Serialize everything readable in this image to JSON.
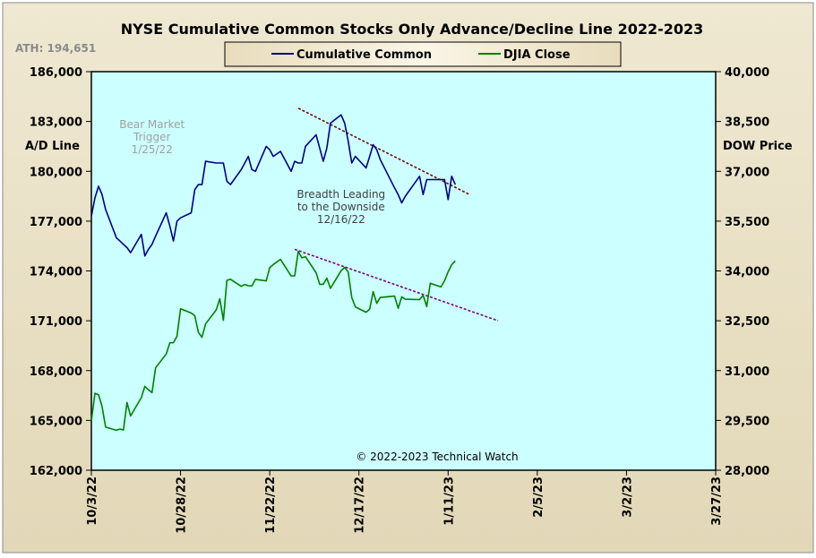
{
  "chart_data": {
    "type": "line",
    "title": "NYSE Cumulative Common Stocks Only Advance/Decline Line 2022-2023",
    "ath_label": "ATH: 194,651",
    "ylabel_left": "A/D Line",
    "ylabel_right": "DOW Price",
    "copyright": "© 2022-2023 Technical Watch",
    "grid": false,
    "legend_position": "top-center",
    "background_color": "#ccffff",
    "frame_color": "#e8e0c4",
    "x_domain": [
      "2022-10-03",
      "2023-03-27"
    ],
    "x_ticks": [
      {
        "date": "2022-10-03",
        "label": "10/3/22"
      },
      {
        "date": "2022-10-28",
        "label": "10/28/22"
      },
      {
        "date": "2022-11-22",
        "label": "11/22/22"
      },
      {
        "date": "2022-12-17",
        "label": "12/17/22"
      },
      {
        "date": "2023-01-11",
        "label": "1/11/23"
      },
      {
        "date": "2023-02-05",
        "label": "2/5/23"
      },
      {
        "date": "2023-03-02",
        "label": "3/2/23"
      },
      {
        "date": "2023-03-27",
        "label": "3/27/23"
      }
    ],
    "y_left": {
      "range": [
        162000,
        186000
      ],
      "ticks": [
        162000,
        165000,
        168000,
        171000,
        174000,
        177000,
        180000,
        183000,
        186000
      ],
      "tick_labels": [
        "162,000",
        "165,000",
        "168,000",
        "171,000",
        "174,000",
        "177,000",
        "180,000",
        "183,000",
        "186,000"
      ]
    },
    "y_right": {
      "range": [
        28000,
        40000
      ],
      "ticks": [
        28000,
        29500,
        31000,
        32500,
        34000,
        35500,
        37000,
        38500,
        40000
      ],
      "tick_labels": [
        "28,000",
        "29,500",
        "31,000",
        "32,500",
        "34,000",
        "35,500",
        "37,000",
        "38,500",
        "40,000"
      ]
    },
    "series": [
      {
        "name": "Cumulative Common",
        "color": "#000080",
        "axis": "left",
        "points": [
          [
            "2022-10-03",
            177300
          ],
          [
            "2022-10-04",
            178400
          ],
          [
            "2022-10-05",
            179100
          ],
          [
            "2022-10-06",
            178600
          ],
          [
            "2022-10-07",
            177700
          ],
          [
            "2022-10-10",
            176000
          ],
          [
            "2022-10-11",
            175800
          ],
          [
            "2022-10-12",
            175600
          ],
          [
            "2022-10-13",
            175400
          ],
          [
            "2022-10-14",
            175100
          ],
          [
            "2022-10-17",
            176200
          ],
          [
            "2022-10-18",
            174900
          ],
          [
            "2022-10-19",
            175300
          ],
          [
            "2022-10-20",
            175600
          ],
          [
            "2022-10-21",
            176100
          ],
          [
            "2022-10-24",
            177500
          ],
          [
            "2022-10-25",
            176700
          ],
          [
            "2022-10-26",
            175800
          ],
          [
            "2022-10-27",
            177000
          ],
          [
            "2022-10-28",
            177200
          ],
          [
            "2022-10-31",
            177500
          ],
          [
            "2022-11-01",
            178900
          ],
          [
            "2022-11-02",
            179200
          ],
          [
            "2022-11-03",
            179200
          ],
          [
            "2022-11-04",
            180600
          ],
          [
            "2022-11-07",
            180500
          ],
          [
            "2022-11-08",
            180500
          ],
          [
            "2022-11-09",
            180500
          ],
          [
            "2022-11-10",
            179400
          ],
          [
            "2022-11-11",
            179200
          ],
          [
            "2022-11-14",
            180100
          ],
          [
            "2022-11-15",
            180500
          ],
          [
            "2022-11-16",
            180900
          ],
          [
            "2022-11-17",
            180100
          ],
          [
            "2022-11-18",
            180000
          ],
          [
            "2022-11-21",
            181500
          ],
          [
            "2022-11-22",
            181300
          ],
          [
            "2022-11-23",
            180900
          ],
          [
            "2022-11-25",
            181200
          ],
          [
            "2022-11-28",
            180000
          ],
          [
            "2022-11-29",
            180600
          ],
          [
            "2022-11-30",
            180500
          ],
          [
            "2022-12-01",
            180500
          ],
          [
            "2022-12-02",
            181500
          ],
          [
            "2022-12-05",
            182200
          ],
          [
            "2022-12-06",
            181400
          ],
          [
            "2022-12-07",
            180600
          ],
          [
            "2022-12-08",
            181400
          ],
          [
            "2022-12-09",
            182900
          ],
          [
            "2022-12-12",
            183400
          ],
          [
            "2022-12-13",
            182900
          ],
          [
            "2022-12-14",
            181800
          ],
          [
            "2022-12-15",
            180500
          ],
          [
            "2022-12-16",
            180900
          ],
          [
            "2022-12-19",
            180200
          ],
          [
            "2022-12-20",
            180900
          ],
          [
            "2022-12-21",
            181600
          ],
          [
            "2022-12-22",
            181300
          ],
          [
            "2022-12-23",
            180700
          ],
          [
            "2022-12-27",
            179000
          ],
          [
            "2022-12-28",
            178600
          ],
          [
            "2022-12-29",
            178100
          ],
          [
            "2022-12-30",
            178500
          ],
          [
            "2023-01-03",
            179700
          ],
          [
            "2023-01-04",
            178600
          ],
          [
            "2023-01-05",
            179500
          ],
          [
            "2023-01-06",
            179500
          ],
          [
            "2023-01-09",
            179500
          ],
          [
            "2023-01-10",
            179500
          ],
          [
            "2023-01-11",
            178300
          ],
          [
            "2023-01-12",
            179700
          ],
          [
            "2023-01-13",
            179200
          ]
        ]
      },
      {
        "name": "DJIA Close",
        "color": "#008000",
        "axis": "right",
        "points": [
          [
            "2022-10-03",
            29490
          ],
          [
            "2022-10-04",
            30316
          ],
          [
            "2022-10-05",
            30273
          ],
          [
            "2022-10-06",
            29927
          ],
          [
            "2022-10-07",
            29297
          ],
          [
            "2022-10-10",
            29203
          ],
          [
            "2022-10-11",
            29240
          ],
          [
            "2022-10-12",
            29210
          ],
          [
            "2022-10-13",
            30039
          ],
          [
            "2022-10-14",
            29635
          ],
          [
            "2022-10-17",
            30186
          ],
          [
            "2022-10-18",
            30524
          ],
          [
            "2022-10-19",
            30424
          ],
          [
            "2022-10-20",
            30334
          ],
          [
            "2022-10-21",
            31083
          ],
          [
            "2022-10-24",
            31500
          ],
          [
            "2022-10-25",
            31837
          ],
          [
            "2022-10-26",
            31840
          ],
          [
            "2022-10-27",
            32034
          ],
          [
            "2022-10-28",
            32862
          ],
          [
            "2022-10-31",
            32733
          ],
          [
            "2022-11-01",
            32653
          ],
          [
            "2022-11-02",
            32148
          ],
          [
            "2022-11-03",
            32001
          ],
          [
            "2022-11-04",
            32403
          ],
          [
            "2022-11-07",
            32827
          ],
          [
            "2022-11-08",
            33161
          ],
          [
            "2022-11-09",
            32514
          ],
          [
            "2022-11-10",
            33716
          ],
          [
            "2022-11-11",
            33748
          ],
          [
            "2022-11-14",
            33537
          ],
          [
            "2022-11-15",
            33593
          ],
          [
            "2022-11-16",
            33554
          ],
          [
            "2022-11-17",
            33546
          ],
          [
            "2022-11-18",
            33746
          ],
          [
            "2022-11-21",
            33700
          ],
          [
            "2022-11-22",
            34098
          ],
          [
            "2022-11-23",
            34194
          ],
          [
            "2022-11-25",
            34347
          ],
          [
            "2022-11-28",
            33850
          ],
          [
            "2022-11-29",
            33853
          ],
          [
            "2022-11-30",
            34590
          ],
          [
            "2022-12-01",
            34395
          ],
          [
            "2022-12-02",
            34430
          ],
          [
            "2022-12-05",
            33947
          ],
          [
            "2022-12-06",
            33597
          ],
          [
            "2022-12-07",
            33598
          ],
          [
            "2022-12-08",
            33781
          ],
          [
            "2022-12-09",
            33476
          ],
          [
            "2022-12-12",
            34005
          ],
          [
            "2022-12-13",
            34108
          ],
          [
            "2022-12-14",
            33966
          ],
          [
            "2022-12-15",
            33203
          ],
          [
            "2022-12-16",
            32920
          ],
          [
            "2022-12-19",
            32757
          ],
          [
            "2022-12-20",
            32850
          ],
          [
            "2022-12-21",
            33376
          ],
          [
            "2022-12-22",
            33027
          ],
          [
            "2022-12-23",
            33203
          ],
          [
            "2022-12-27",
            33241
          ],
          [
            "2022-12-28",
            32875
          ],
          [
            "2022-12-29",
            33221
          ],
          [
            "2022-12-30",
            33147
          ],
          [
            "2023-01-03",
            33136
          ],
          [
            "2023-01-04",
            33270
          ],
          [
            "2023-01-05",
            32930
          ],
          [
            "2023-01-06",
            33630
          ],
          [
            "2023-01-09",
            33517
          ],
          [
            "2023-01-10",
            33704
          ],
          [
            "2023-01-11",
            33973
          ],
          [
            "2023-01-12",
            34190
          ],
          [
            "2023-01-13",
            34303
          ]
        ]
      }
    ],
    "trendlines": [
      {
        "axis": "left",
        "start": [
          "2022-11-30",
          183800
        ],
        "end": [
          "2023-01-17",
          178600
        ],
        "color": "#800000"
      },
      {
        "axis": "right",
        "start": [
          "2022-11-29",
          34650
        ],
        "end": [
          "2023-01-25",
          32500
        ],
        "color": "#800080"
      }
    ],
    "annotations": [
      {
        "lines": [
          "Bear Market",
          "Trigger",
          "1/25/22"
        ],
        "date": "2022-10-20",
        "value": 182600,
        "axis": "left",
        "color": "#a0a0a0"
      },
      {
        "lines": [
          "Breadth Leading",
          "to the Downside",
          "12/16/22"
        ],
        "date": "2022-12-12",
        "value": 178400,
        "axis": "left",
        "color": "#404040"
      }
    ]
  }
}
